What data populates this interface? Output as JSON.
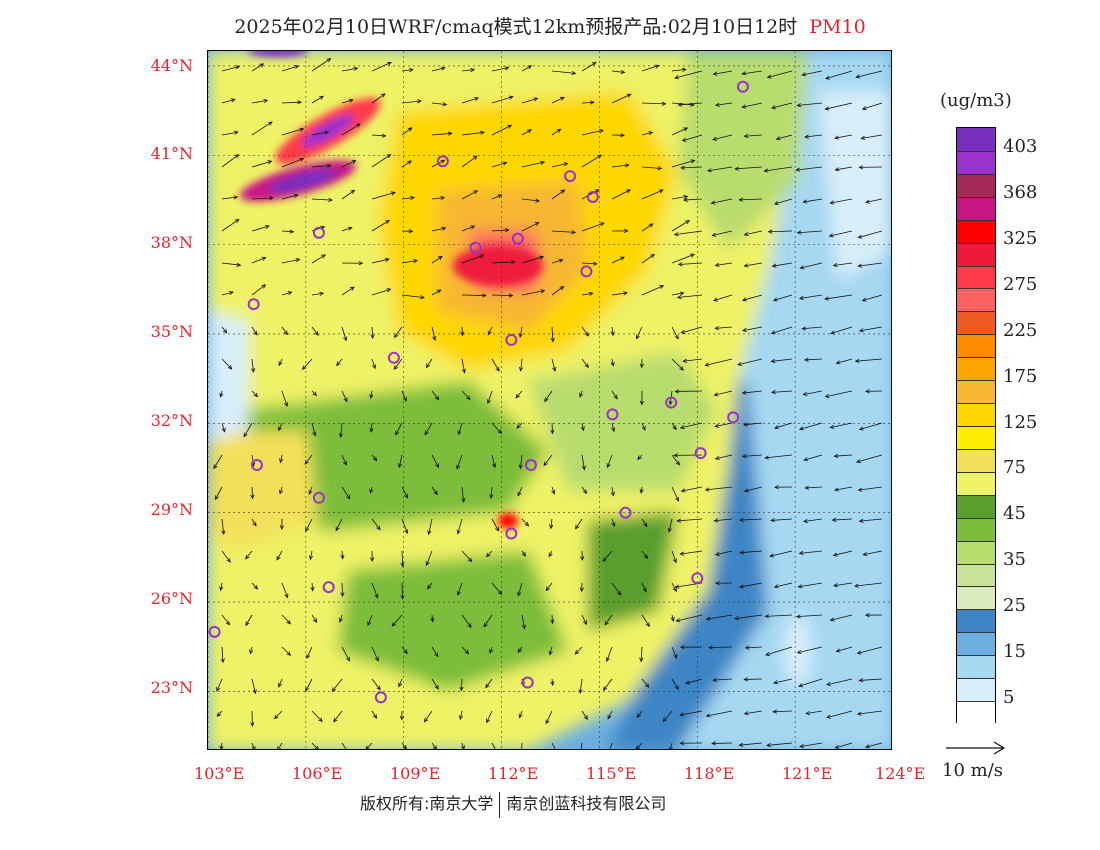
{
  "title": {
    "main": "2025年02月10日WRF/cmaq模式12km预报产品:02月10日12时",
    "pollutant": "PM10"
  },
  "axes": {
    "lat_labels": [
      "44°N",
      "41°N",
      "38°N",
      "35°N",
      "32°N",
      "29°N",
      "26°N",
      "23°N"
    ],
    "lon_labels": [
      "103°E",
      "106°E",
      "109°E",
      "112°E",
      "115°E",
      "118°E",
      "121°E",
      "124°E"
    ],
    "lat_range": [
      21.0,
      44.5
    ],
    "lon_range": [
      103.0,
      124.0
    ]
  },
  "legend": {
    "unit": "(ug/m3)",
    "levels": [
      {
        "label": "403",
        "color": "#7b2fbe"
      },
      {
        "label": "",
        "color": "#9a32cd"
      },
      {
        "label": "368",
        "color": "#a52a5a"
      },
      {
        "label": "",
        "color": "#c71585"
      },
      {
        "label": "325",
        "color": "#ff0000"
      },
      {
        "label": "",
        "color": "#ee1a3c"
      },
      {
        "label": "275",
        "color": "#ff3b4a"
      },
      {
        "label": "",
        "color": "#ff6060"
      },
      {
        "label": "225",
        "color": "#ee5a24"
      },
      {
        "label": "",
        "color": "#ff8c00"
      },
      {
        "label": "175",
        "color": "#ffa500"
      },
      {
        "label": "",
        "color": "#f7b733"
      },
      {
        "label": "125",
        "color": "#ffd700"
      },
      {
        "label": "",
        "color": "#ffec00"
      },
      {
        "label": "75",
        "color": "#f3e05a"
      },
      {
        "label": "",
        "color": "#eef266"
      },
      {
        "label": "45",
        "color": "#5a9e2f"
      },
      {
        "label": "",
        "color": "#7cbd3b"
      },
      {
        "label": "35",
        "color": "#b9dc6e"
      },
      {
        "label": "",
        "color": "#c9e29a"
      },
      {
        "label": "25",
        "color": "#dcebc0"
      },
      {
        "label": "",
        "color": "#3e85c5"
      },
      {
        "label": "15",
        "color": "#6caee0"
      },
      {
        "label": "",
        "color": "#a6d8f2"
      },
      {
        "label": "5",
        "color": "#d8eefa"
      },
      {
        "label": "",
        "color": "#ffffff"
      }
    ]
  },
  "wind_reference": {
    "label": "10 m/s"
  },
  "footer": {
    "left": "版权所有:南京大学",
    "right": "南京创蓝科技有限公司"
  },
  "colors": {
    "axis_label": "#e8232b",
    "city_marker": "#9a32cd"
  }
}
